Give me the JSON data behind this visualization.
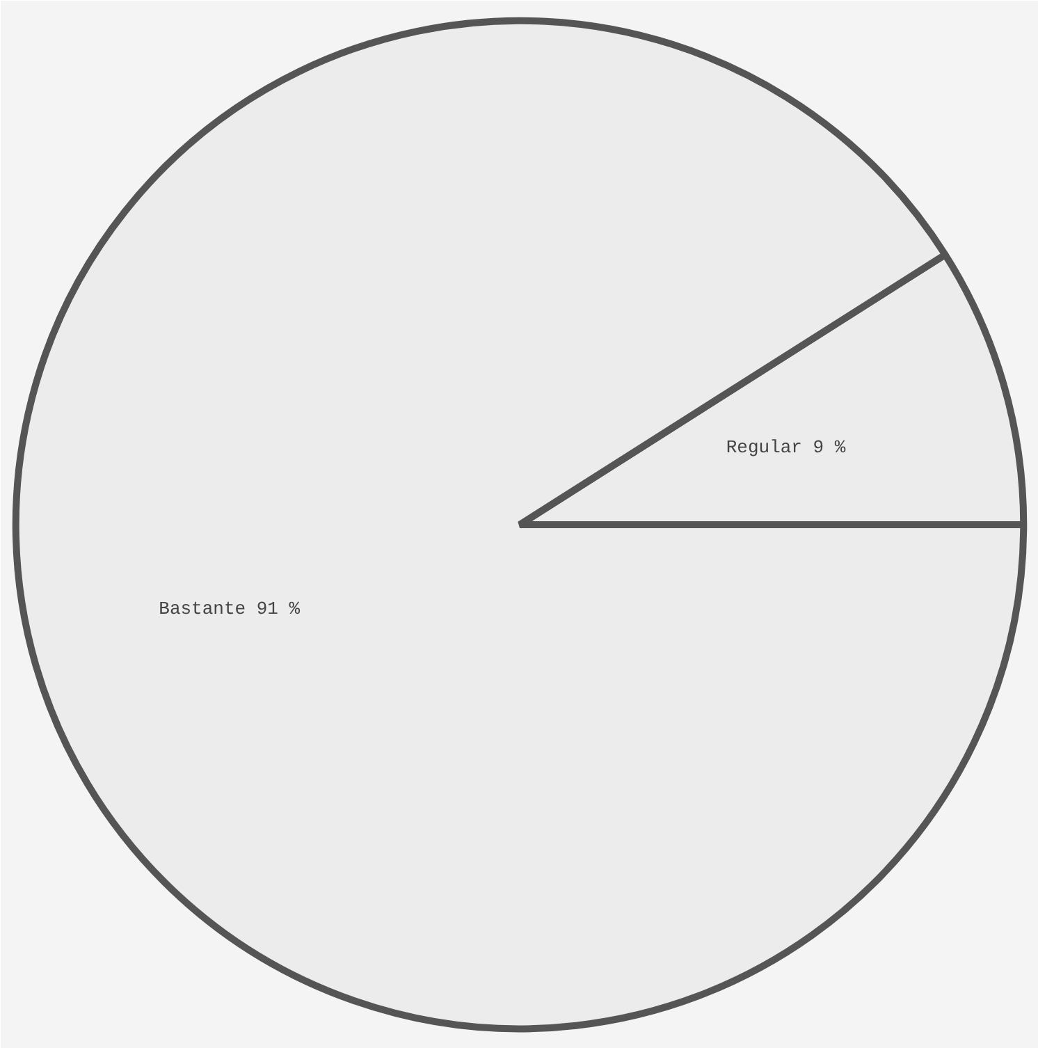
{
  "chart_data": {
    "type": "pie",
    "categories": [
      "Bastante",
      "Regular"
    ],
    "values": [
      91,
      9
    ],
    "value_labels": [
      "91 %",
      "9 %"
    ],
    "colors": [
      "#ececec",
      "#ececec"
    ]
  }
}
